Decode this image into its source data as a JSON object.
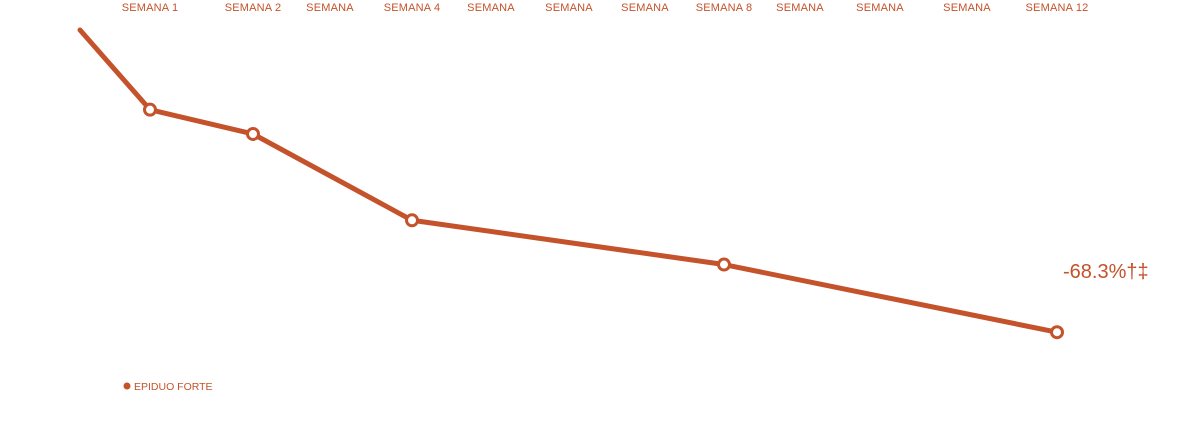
{
  "chart_data": {
    "type": "line",
    "x": [
      "SEMANA 1",
      "SEMANA 2",
      "SEMANA",
      "SEMANA 4",
      "SEMANA",
      "SEMANA",
      "SEMANA",
      "SEMANA 8",
      "SEMANA",
      "SEMANA",
      "SEMANA",
      "SEMANA 12"
    ],
    "series": [
      {
        "name": "EPIDUO FORTE",
        "color": "#c4522a",
        "points": [
          {
            "x": "SEMANA 1",
            "y": -18.0
          },
          {
            "x": "SEMANA 2",
            "y": -23.5
          },
          {
            "x": "SEMANA 4",
            "y": -43.0
          },
          {
            "x": "SEMANA 8",
            "y": -53.0
          },
          {
            "x": "SEMANA 12",
            "y": -68.3
          }
        ]
      }
    ],
    "start_value": 0,
    "end_label": "-68.3%†‡",
    "ylim": [
      -80,
      0
    ],
    "grid": false,
    "legend": "bottom-left"
  },
  "legend": {
    "label": "EPIDUO FORTE"
  }
}
